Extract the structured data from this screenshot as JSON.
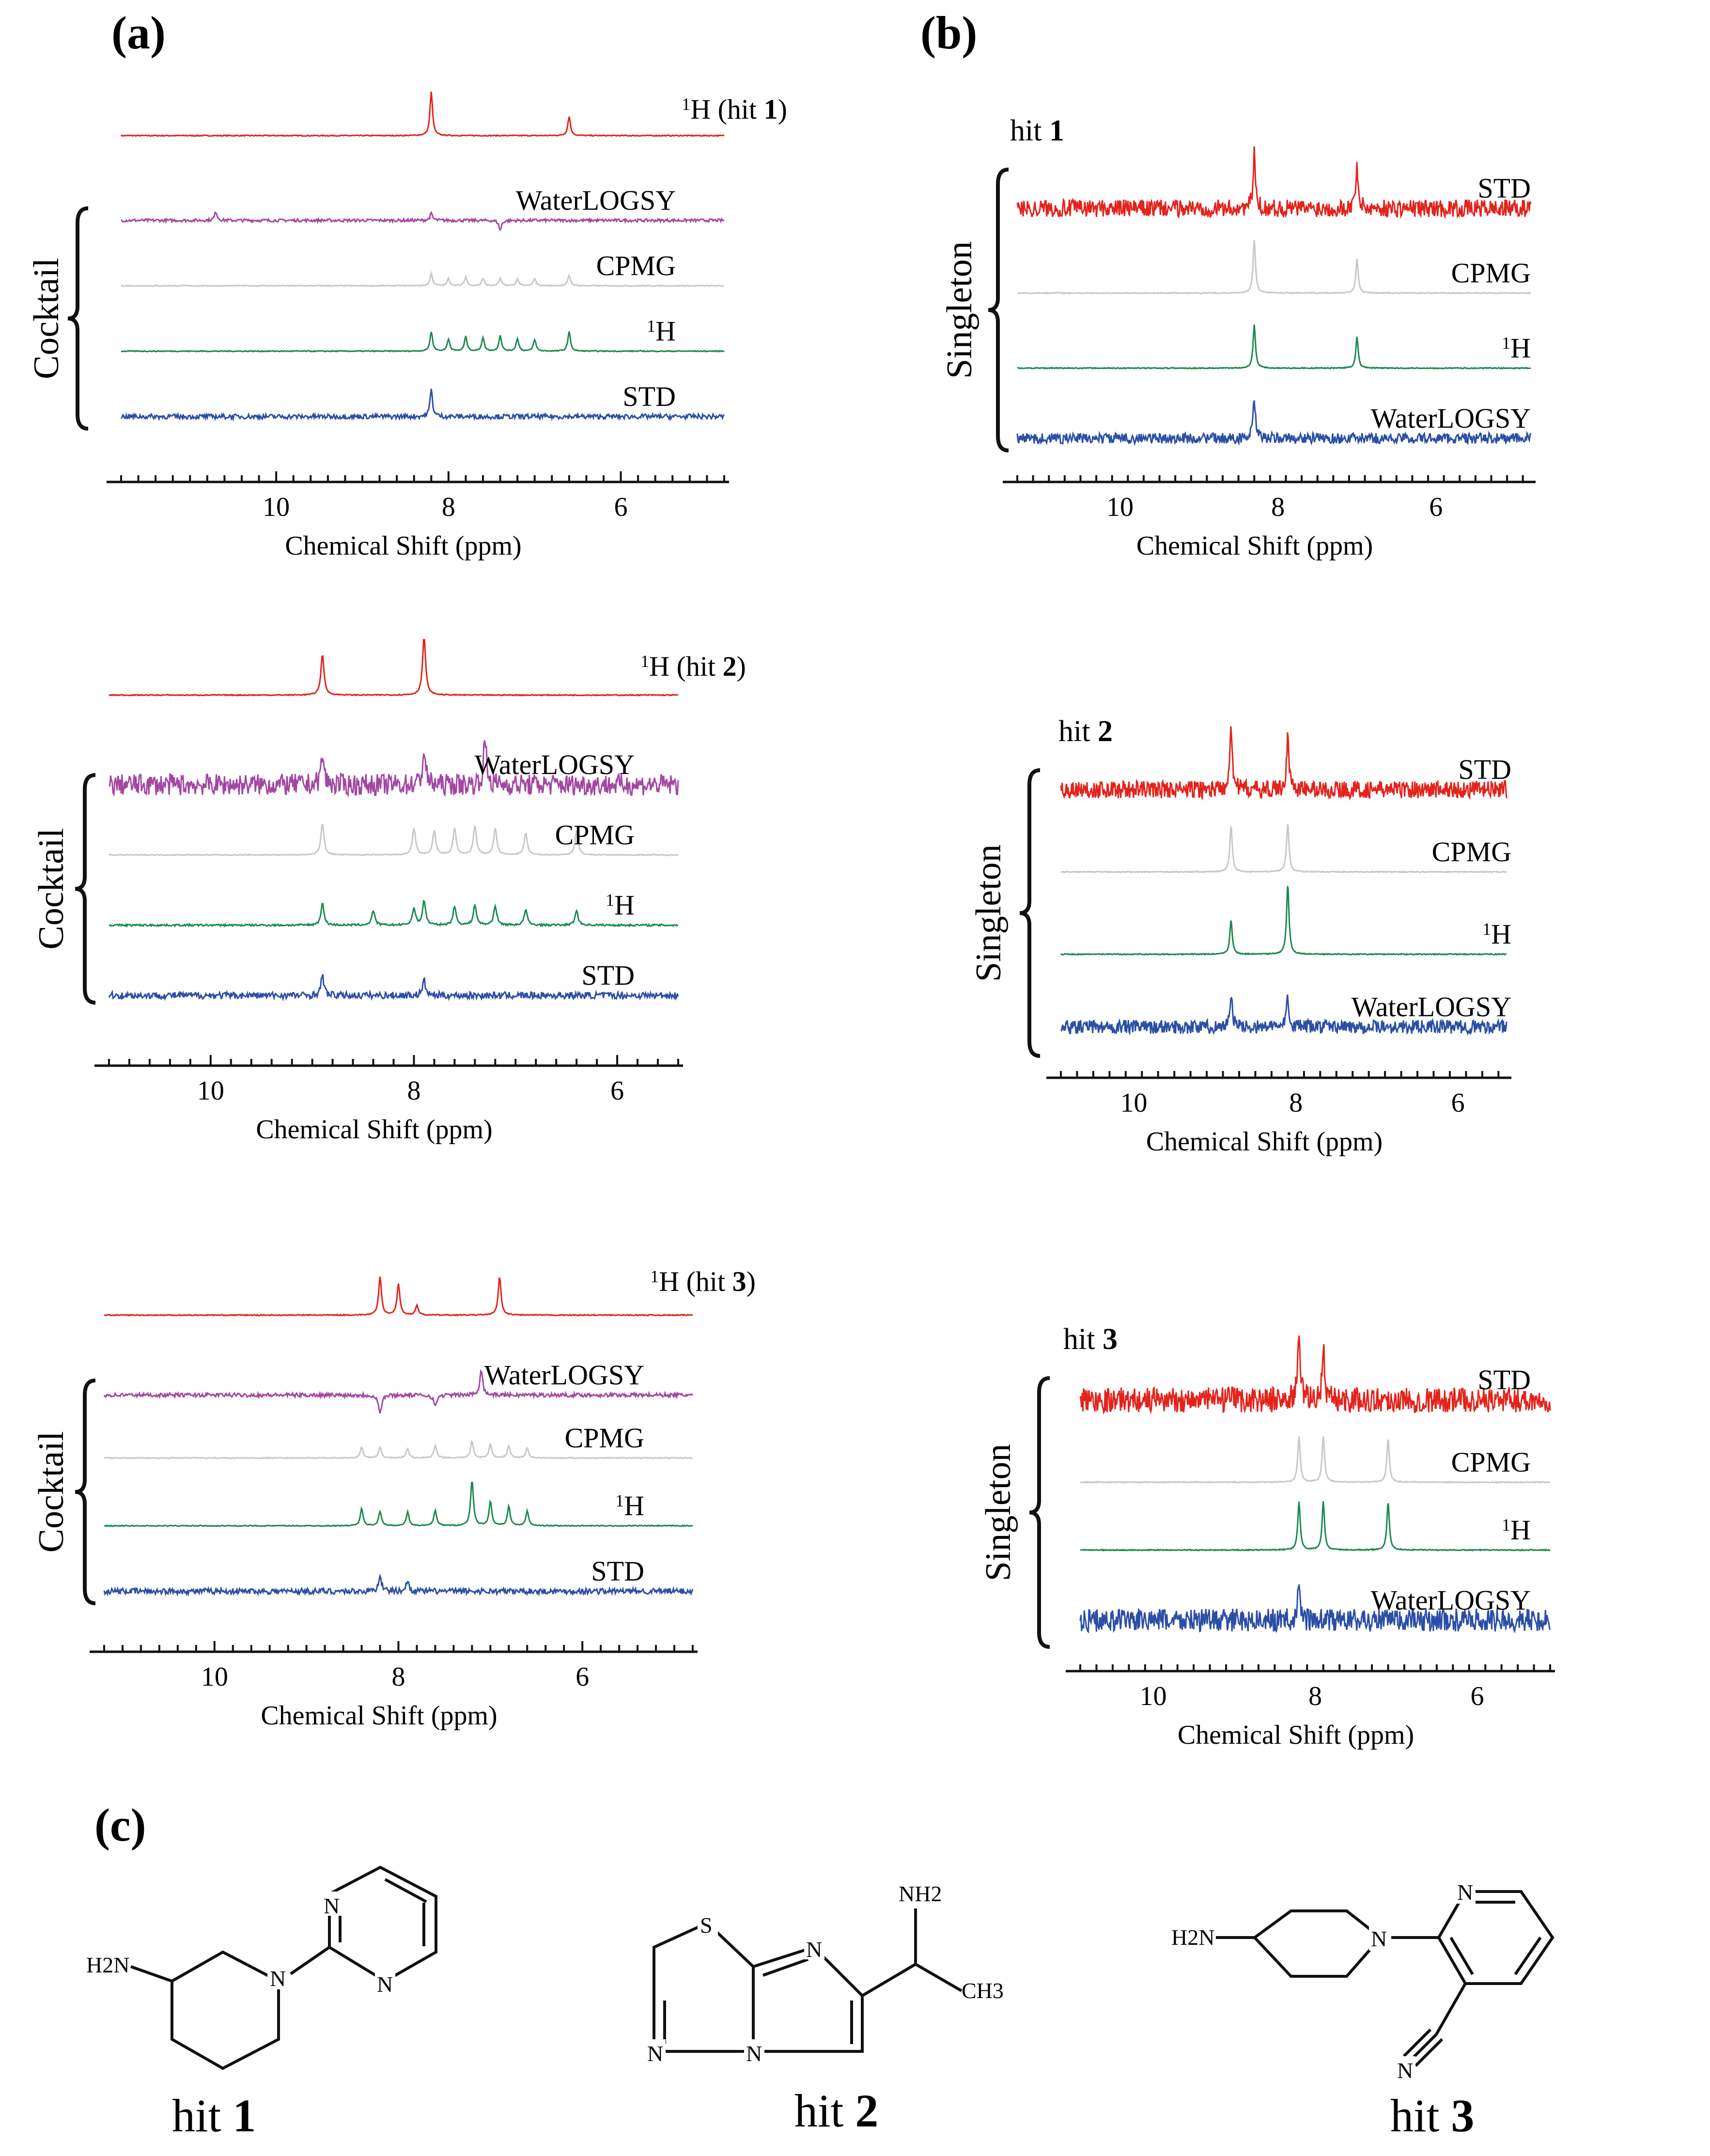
{
  "panel_labels": {
    "a": "(a)",
    "b": "(b)",
    "c": "(c)"
  },
  "axis": {
    "xlabel": "Chemical Shift (ppm)",
    "ticks": [
      "10",
      "8",
      "6"
    ]
  },
  "brace_labels": {
    "cocktail": "Cocktail",
    "singleton": "Singleton"
  },
  "colors": {
    "red": "#e3231c",
    "magenta": "#a347a3",
    "gray": "#c8c8c8",
    "green": "#1b8a4e",
    "blue": "#2b4fa6"
  },
  "chart_data": [
    {
      "type": "line",
      "panel": "a",
      "hit": "1",
      "title_prefix": "1H (hit ",
      "title_num": "1",
      "title_suffix": ")",
      "xlabel": "Chemical Shift (ppm)",
      "xlim": [
        11.8,
        4.8
      ],
      "x_ticks": [
        10,
        8,
        6
      ],
      "series": [
        {
          "name": "1H (hit 1)",
          "label": "",
          "color": "#e3231c",
          "noise": 1,
          "peaks": [
            [
              8.2,
              90
            ],
            [
              6.6,
              40
            ]
          ]
        },
        {
          "name": "WaterLOGSY",
          "label": "WaterLOGSY",
          "color": "#a347a3",
          "noise": 3,
          "peaks": [
            [
              10.7,
              18
            ],
            [
              8.2,
              14
            ],
            [
              7.4,
              -20
            ]
          ]
        },
        {
          "name": "CPMG",
          "label": "CPMG",
          "color": "#c8c8c8",
          "noise": 1,
          "peaks": [
            [
              8.2,
              25
            ],
            [
              8.0,
              15
            ],
            [
              7.8,
              18
            ],
            [
              7.6,
              15
            ],
            [
              7.4,
              15
            ],
            [
              7.2,
              14
            ],
            [
              7.0,
              15
            ],
            [
              6.6,
              22
            ]
          ]
        },
        {
          "name": "1H",
          "label": "1H",
          "color": "#1b8a4e",
          "noise": 1,
          "peaks": [
            [
              8.2,
              40
            ],
            [
              8.0,
              25
            ],
            [
              7.8,
              30
            ],
            [
              7.6,
              28
            ],
            [
              7.4,
              32
            ],
            [
              7.2,
              26
            ],
            [
              7.0,
              24
            ],
            [
              6.6,
              40
            ]
          ]
        },
        {
          "name": "STD",
          "label": "STD",
          "color": "#2b4fa6",
          "noise": 5,
          "peaks": [
            [
              8.2,
              55
            ]
          ]
        }
      ]
    },
    {
      "type": "line",
      "panel": "a",
      "hit": "2",
      "title_prefix": "1H (hit ",
      "title_num": "2",
      "title_suffix": ")",
      "xlabel": "Chemical Shift (ppm)",
      "xlim": [
        11.0,
        5.4
      ],
      "x_ticks": [
        10,
        8,
        6
      ],
      "series": [
        {
          "name": "1H (hit 2)",
          "label": "",
          "color": "#e3231c",
          "noise": 1,
          "peaks": [
            [
              8.9,
              85
            ],
            [
              7.9,
              120
            ]
          ]
        },
        {
          "name": "WaterLOGSY",
          "label": "WaterLOGSY",
          "color": "#a347a3",
          "noise": 22,
          "peaks": [
            [
              8.9,
              60
            ],
            [
              7.9,
              70
            ],
            [
              7.3,
              90
            ]
          ]
        },
        {
          "name": "CPMG",
          "label": "CPMG",
          "color": "#c8c8c8",
          "noise": 1,
          "peaks": [
            [
              8.9,
              65
            ],
            [
              8.0,
              55
            ],
            [
              7.8,
              50
            ],
            [
              7.6,
              55
            ],
            [
              7.4,
              60
            ],
            [
              7.2,
              55
            ],
            [
              6.9,
              45
            ],
            [
              6.4,
              50
            ]
          ]
        },
        {
          "name": "1H",
          "label": "1H",
          "color": "#1b8a4e",
          "noise": 2,
          "peaks": [
            [
              8.9,
              45
            ],
            [
              8.4,
              30
            ],
            [
              8.0,
              35
            ],
            [
              7.9,
              50
            ],
            [
              7.6,
              38
            ],
            [
              7.4,
              42
            ],
            [
              7.2,
              40
            ],
            [
              6.9,
              32
            ],
            [
              6.4,
              30
            ]
          ]
        },
        {
          "name": "STD",
          "label": "STD",
          "color": "#2b4fa6",
          "noise": 7,
          "peaks": [
            [
              8.9,
              40
            ],
            [
              7.9,
              30
            ]
          ]
        }
      ]
    },
    {
      "type": "line",
      "panel": "a",
      "hit": "3",
      "title_prefix": "1H (hit ",
      "title_num": "3",
      "title_suffix": ")",
      "xlabel": "Chemical Shift (ppm)",
      "xlim": [
        11.2,
        4.8
      ],
      "x_ticks": [
        10,
        8,
        6
      ],
      "series": [
        {
          "name": "1H (hit 3)",
          "label": "",
          "color": "#e3231c",
          "noise": 1,
          "peaks": [
            [
              8.2,
              80
            ],
            [
              8.0,
              65
            ],
            [
              7.8,
              20
            ],
            [
              6.9,
              80
            ]
          ]
        },
        {
          "name": "WaterLOGSY",
          "label": "WaterLOGSY",
          "color": "#a347a3",
          "noise": 4,
          "peaks": [
            [
              8.2,
              -40
            ],
            [
              7.6,
              -25
            ],
            [
              7.1,
              55
            ]
          ]
        },
        {
          "name": "CPMG",
          "label": "CPMG",
          "color": "#c8c8c8",
          "noise": 1,
          "peaks": [
            [
              8.4,
              22
            ],
            [
              8.2,
              22
            ],
            [
              7.9,
              20
            ],
            [
              7.6,
              25
            ],
            [
              7.2,
              35
            ],
            [
              7.0,
              28
            ],
            [
              6.8,
              25
            ],
            [
              6.6,
              20
            ]
          ]
        },
        {
          "name": "1H",
          "label": "1H",
          "color": "#1b8a4e",
          "noise": 1,
          "peaks": [
            [
              8.4,
              35
            ],
            [
              8.2,
              30
            ],
            [
              7.9,
              28
            ],
            [
              7.6,
              32
            ],
            [
              7.2,
              95
            ],
            [
              7.0,
              50
            ],
            [
              6.8,
              40
            ],
            [
              6.6,
              30
            ]
          ]
        },
        {
          "name": "STD",
          "label": "STD",
          "color": "#2b4fa6",
          "noise": 6,
          "peaks": [
            [
              8.2,
              35
            ],
            [
              7.9,
              22
            ]
          ]
        }
      ]
    },
    {
      "type": "line",
      "panel": "b",
      "hit": "1",
      "hit_prefix": "hit ",
      "hit_num": "1",
      "xlabel": "Chemical Shift (ppm)",
      "xlim": [
        11.3,
        4.8
      ],
      "x_ticks": [
        10,
        8,
        6
      ],
      "series": [
        {
          "name": "STD",
          "label": "STD",
          "color": "#e3231c",
          "noise": 18,
          "peaks": [
            [
              8.3,
              110
            ],
            [
              7.0,
              90
            ]
          ]
        },
        {
          "name": "CPMG",
          "label": "CPMG",
          "color": "#c8c8c8",
          "noise": 1,
          "peaks": [
            [
              8.3,
              110
            ],
            [
              7.0,
              70
            ]
          ]
        },
        {
          "name": "1H",
          "label": "1H",
          "color": "#1b8a4e",
          "noise": 1,
          "peaks": [
            [
              8.3,
              90
            ],
            [
              7.0,
              65
            ]
          ]
        },
        {
          "name": "WaterLOGSY",
          "label": "WaterLOGSY",
          "color": "#2b4fa6",
          "noise": 11,
          "peaks": [
            [
              8.3,
              80
            ]
          ]
        }
      ]
    },
    {
      "type": "line",
      "panel": "b",
      "hit": "2",
      "hit_prefix": "hit ",
      "hit_num": "2",
      "xlabel": "Chemical Shift (ppm)",
      "xlim": [
        10.9,
        5.4
      ],
      "x_ticks": [
        10,
        8,
        6
      ],
      "series": [
        {
          "name": "STD",
          "label": "STD",
          "color": "#e3231c",
          "noise": 18,
          "peaks": [
            [
              8.8,
              140
            ],
            [
              8.1,
              110
            ]
          ]
        },
        {
          "name": "CPMG",
          "label": "CPMG",
          "color": "#c8c8c8",
          "noise": 1,
          "peaks": [
            [
              8.8,
              95
            ],
            [
              8.1,
              100
            ]
          ]
        },
        {
          "name": "1H",
          "label": "1H",
          "color": "#1b8a4e",
          "noise": 1,
          "peaks": [
            [
              8.8,
              70
            ],
            [
              8.1,
              145
            ]
          ]
        },
        {
          "name": "WaterLOGSY",
          "label": "WaterLOGSY",
          "color": "#2b4fa6",
          "noise": 14,
          "peaks": [
            [
              8.8,
              70
            ],
            [
              8.1,
              65
            ]
          ]
        }
      ]
    },
    {
      "type": "line",
      "panel": "b",
      "hit": "3",
      "hit_prefix": "hit ",
      "hit_num": "3",
      "xlabel": "Chemical Shift (ppm)",
      "xlim": [
        10.9,
        5.1
      ],
      "x_ticks": [
        10,
        8,
        6
      ],
      "series": [
        {
          "name": "STD",
          "label": "STD",
          "color": "#e3231c",
          "noise": 26,
          "peaks": [
            [
              8.2,
              150
            ],
            [
              7.9,
              110
            ]
          ]
        },
        {
          "name": "CPMG",
          "label": "CPMG",
          "color": "#c8c8c8",
          "noise": 1,
          "peaks": [
            [
              8.2,
              95
            ],
            [
              7.9,
              95
            ],
            [
              7.1,
              90
            ]
          ]
        },
        {
          "name": "1H",
          "label": "1H",
          "color": "#1b8a4e",
          "noise": 1,
          "peaks": [
            [
              8.2,
              100
            ],
            [
              7.9,
              100
            ],
            [
              7.1,
              100
            ]
          ]
        },
        {
          "name": "WaterLOGSY",
          "label": "WaterLOGSY",
          "color": "#2b4fa6",
          "noise": 24,
          "peaks": [
            [
              8.2,
              70
            ]
          ]
        }
      ]
    }
  ],
  "structures": [
    {
      "caption_prefix": "hit ",
      "caption_num": "1",
      "atoms": {
        "amine": "H2N",
        "n": "N"
      }
    },
    {
      "caption_prefix": "hit ",
      "caption_num": "2",
      "atoms": {
        "s": "S",
        "n": "N",
        "amine": "NH2",
        "methyl": "CH3"
      }
    },
    {
      "caption_prefix": "hit ",
      "caption_num": "3",
      "atoms": {
        "amine": "H2N",
        "n": "N"
      }
    }
  ]
}
